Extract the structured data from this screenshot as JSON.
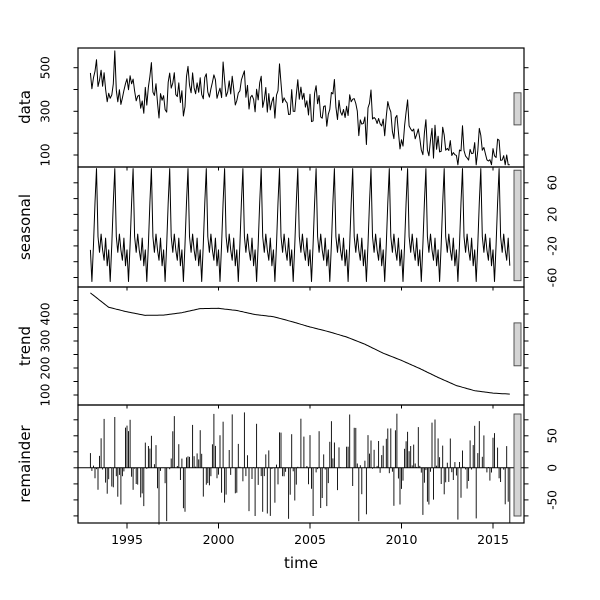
{
  "chart_data": {
    "type": "line",
    "title": "",
    "xlabel": "time",
    "x_start": 1993.0,
    "x_end": 2015.917,
    "frequency": 12,
    "n_points": 276,
    "x_ticks": [
      1995,
      2000,
      2005,
      2010,
      2015
    ],
    "colors": {
      "line": "#000000",
      "background": "#ffffff",
      "range_bar_fill": "#d4d4d4",
      "range_bar_stroke": "#444444"
    },
    "panels": [
      {
        "ylabel": "data",
        "style": "line",
        "axis_side": "left",
        "ylim": [
          45,
          590
        ],
        "ticks": [
          100,
          200,
          300,
          400,
          500
        ],
        "tick_labels": [
          "100",
          "300",
          "500"
        ],
        "tick_label_values": [
          100,
          300,
          500
        ],
        "range_bar": [
          238,
          385
        ]
      },
      {
        "ylabel": "seasonal",
        "style": "line",
        "axis_side": "right",
        "ylim": [
          -72,
          80
        ],
        "ticks": [
          -60,
          -40,
          -20,
          0,
          20,
          40,
          60
        ],
        "tick_labels": [
          "-60",
          "-20",
          "20",
          "60"
        ],
        "tick_label_values": [
          -60,
          -20,
          20,
          60
        ],
        "range_bar": [
          -64,
          76
        ]
      },
      {
        "ylabel": "trend",
        "style": "line",
        "axis_side": "left",
        "ylim": [
          63,
          500
        ],
        "ticks": [
          100,
          150,
          200,
          250,
          300,
          350,
          400,
          450
        ],
        "tick_labels": [
          "100",
          "200",
          "300",
          "400"
        ],
        "tick_label_values": [
          100,
          200,
          300,
          400
        ],
        "range_bar": [
          208,
          367
        ]
      },
      {
        "ylabel": "remainder",
        "style": "h-bars",
        "axis_side": "right",
        "ylim": [
          -86,
          98
        ],
        "ticks": [
          -75,
          -50,
          -25,
          0,
          25,
          50,
          75
        ],
        "tick_labels": [
          "-50",
          "0",
          "50"
        ],
        "tick_label_values": [
          -50,
          0,
          50
        ],
        "range_bar": [
          -75,
          84
        ]
      }
    ],
    "seasonal_pattern": [
      -25,
      -65,
      -18,
      35,
      78,
      -8,
      -28,
      -5,
      -25,
      -38,
      -10,
      -45
    ],
    "trend_anchors": {
      "years": [
        1993,
        1994,
        1995,
        1996,
        1997,
        1998,
        1999,
        2000,
        2001,
        2002,
        2003,
        2004,
        2005,
        2006,
        2007,
        2008,
        2009,
        2010,
        2011,
        2012,
        2013,
        2014,
        2015,
        2016
      ],
      "values": [
        478,
        425,
        408,
        395,
        396,
        405,
        420,
        421,
        413,
        398,
        390,
        372,
        352,
        335,
        315,
        288,
        255,
        228,
        198,
        165,
        135,
        116,
        107,
        103
      ]
    },
    "remainder_noise": {
      "seed": 20,
      "scale": 90
    },
    "composition_rule": "data = trend + seasonal + remainder"
  }
}
